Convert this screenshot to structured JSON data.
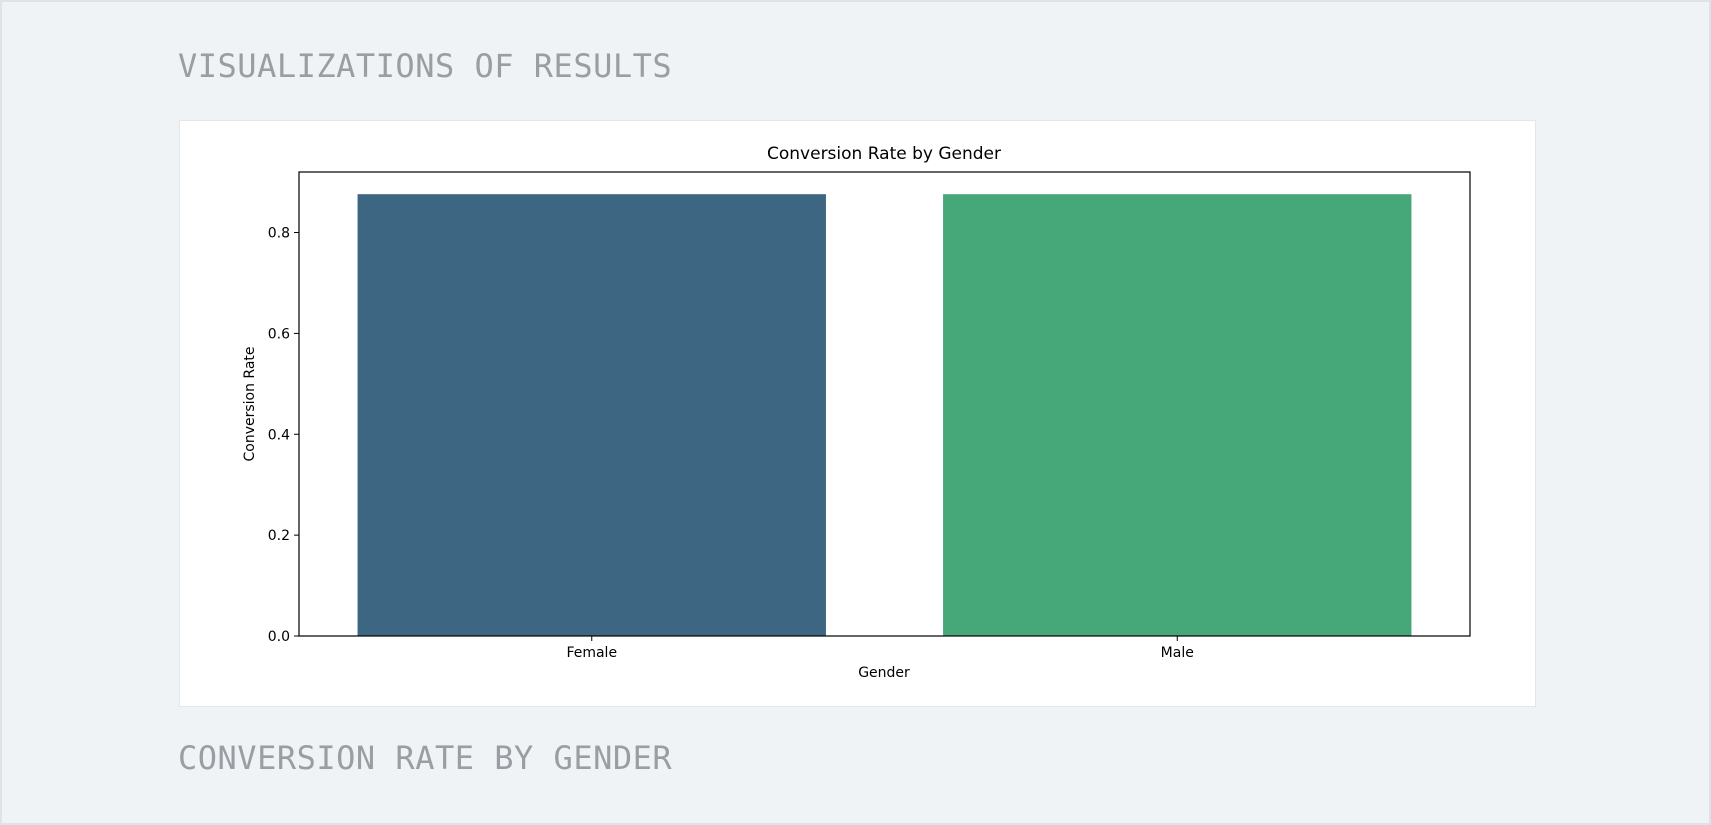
{
  "page": {
    "heading": "VISUALIZATIONS OF RESULTS",
    "chart_caption": "CONVERSION RATE BY GENDER"
  },
  "chart_data": {
    "type": "bar",
    "title": "Conversion Rate by Gender",
    "xlabel": "Gender",
    "ylabel": "Conversion Rate",
    "categories": [
      "Female",
      "Male"
    ],
    "values": [
      0.876,
      0.876
    ],
    "colors": [
      "#3d6682",
      "#46a878"
    ],
    "ylim": [
      0,
      0.92
    ],
    "yticks": [
      0.0,
      0.2,
      0.4,
      0.6,
      0.8
    ],
    "ytick_labels": [
      "0.0",
      "0.2",
      "0.4",
      "0.6",
      "0.8"
    ],
    "grid": false,
    "legend": "none"
  }
}
